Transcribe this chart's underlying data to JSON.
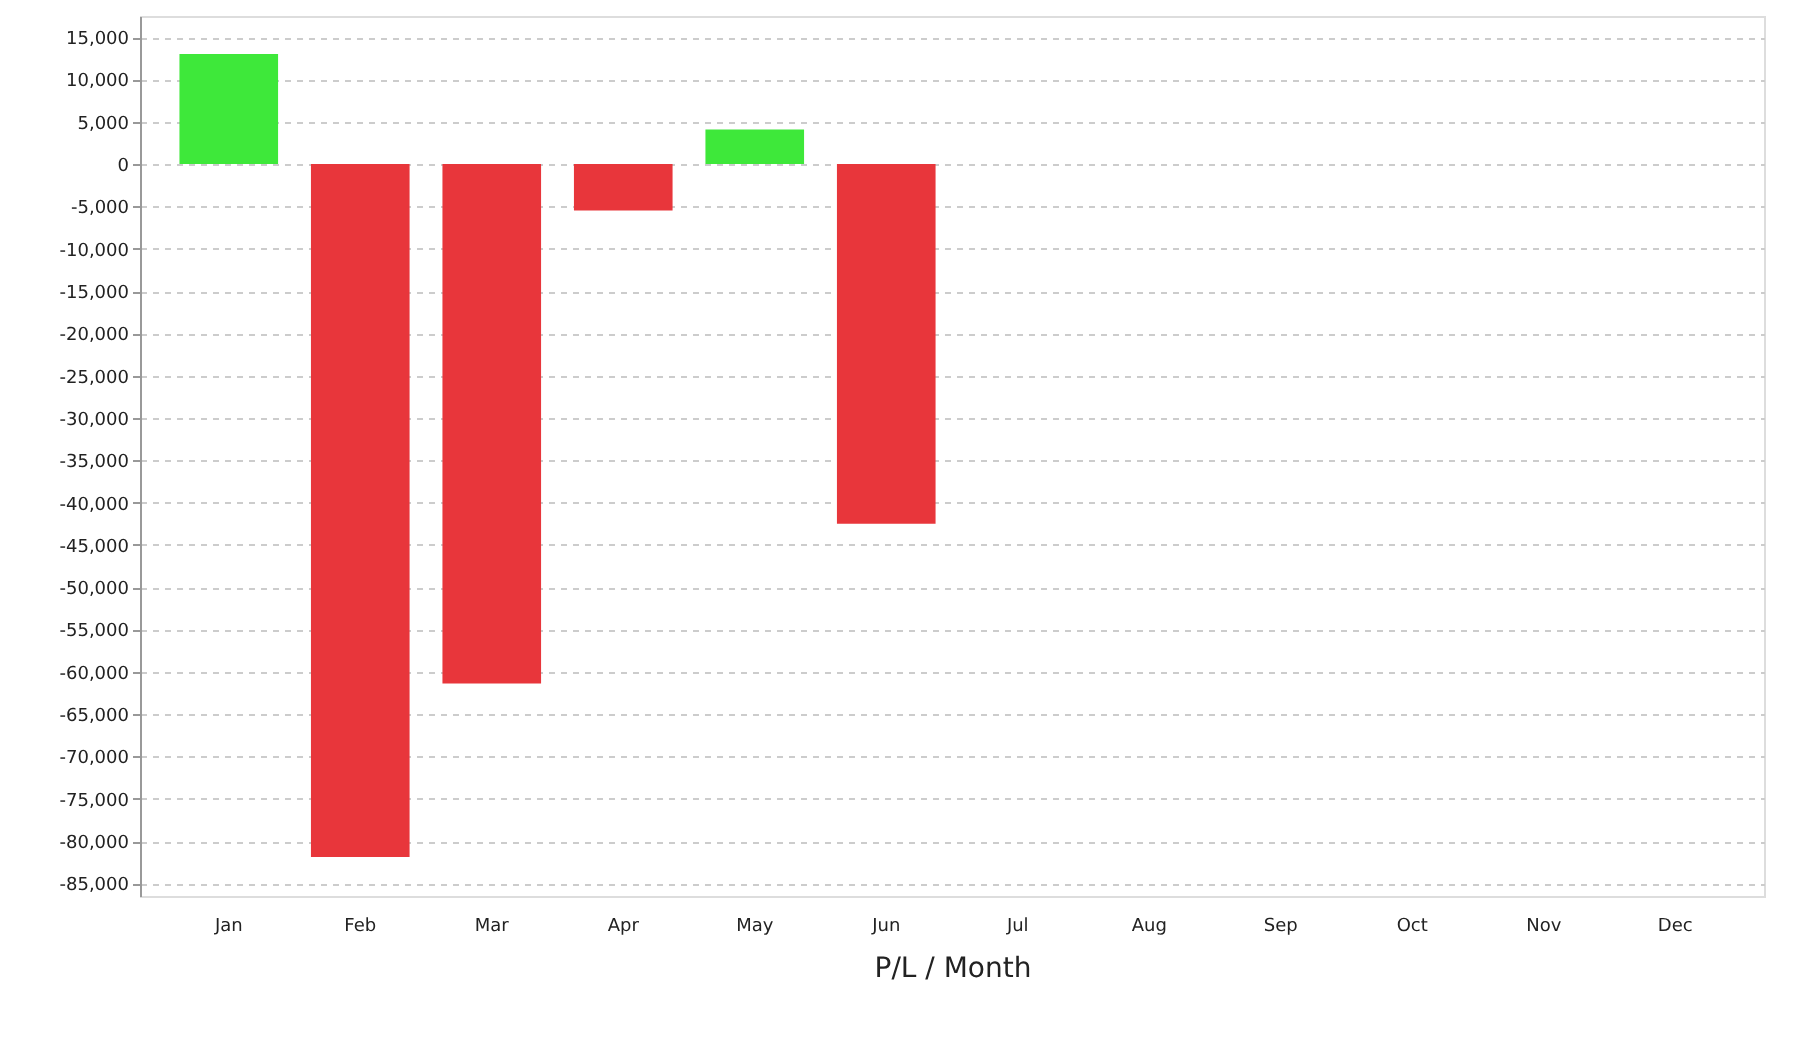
{
  "chart_data": {
    "type": "bar",
    "xlabel": "P/L / Month",
    "categories": [
      "Jan",
      "Feb",
      "Mar",
      "Apr",
      "May",
      "Jun",
      "Jul",
      "Aug",
      "Sep",
      "Oct",
      "Nov",
      "Dec"
    ],
    "values": [
      13000,
      -81900,
      -61400,
      -5500,
      4100,
      -42500,
      null,
      null,
      null,
      null,
      null,
      null
    ],
    "colors": [
      "#3ee83a",
      "#e8363b",
      "#e8363b",
      "#e8363b",
      "#3ee83a",
      "#e8363b",
      "#e8363b",
      "#e8363b",
      "#e8363b",
      "#e8363b",
      "#e8363b",
      "#e8363b"
    ],
    "ylim": [
      -86500,
      17500
    ],
    "yticks": [
      {
        "value": -85000,
        "label": "-85,000"
      },
      {
        "value": -80000,
        "label": "-80,000"
      },
      {
        "value": -75000,
        "label": "-75,000"
      },
      {
        "value": -70000,
        "label": "-70,000"
      },
      {
        "value": -65000,
        "label": "-65,000"
      },
      {
        "value": -60000,
        "label": "-60,000"
      },
      {
        "value": -55000,
        "label": "-55,000"
      },
      {
        "value": -50000,
        "label": "-50,000"
      },
      {
        "value": -45000,
        "label": "-45,000"
      },
      {
        "value": -40000,
        "label": "-40,000"
      },
      {
        "value": -35000,
        "label": "-35,000"
      },
      {
        "value": -30000,
        "label": "-30,000"
      },
      {
        "value": -25000,
        "label": "-25,000"
      },
      {
        "value": -20000,
        "label": "-20,000"
      },
      {
        "value": -15000,
        "label": "-15,000"
      },
      {
        "value": -10000,
        "label": "-10,000"
      },
      {
        "value": -5000,
        "label": "-5,000"
      },
      0,
      {
        "value": 5000,
        "label": "5,000"
      },
      {
        "value": 10000,
        "label": "10,000"
      },
      {
        "value": 15000,
        "label": "15,000"
      }
    ],
    "grid": "y"
  }
}
